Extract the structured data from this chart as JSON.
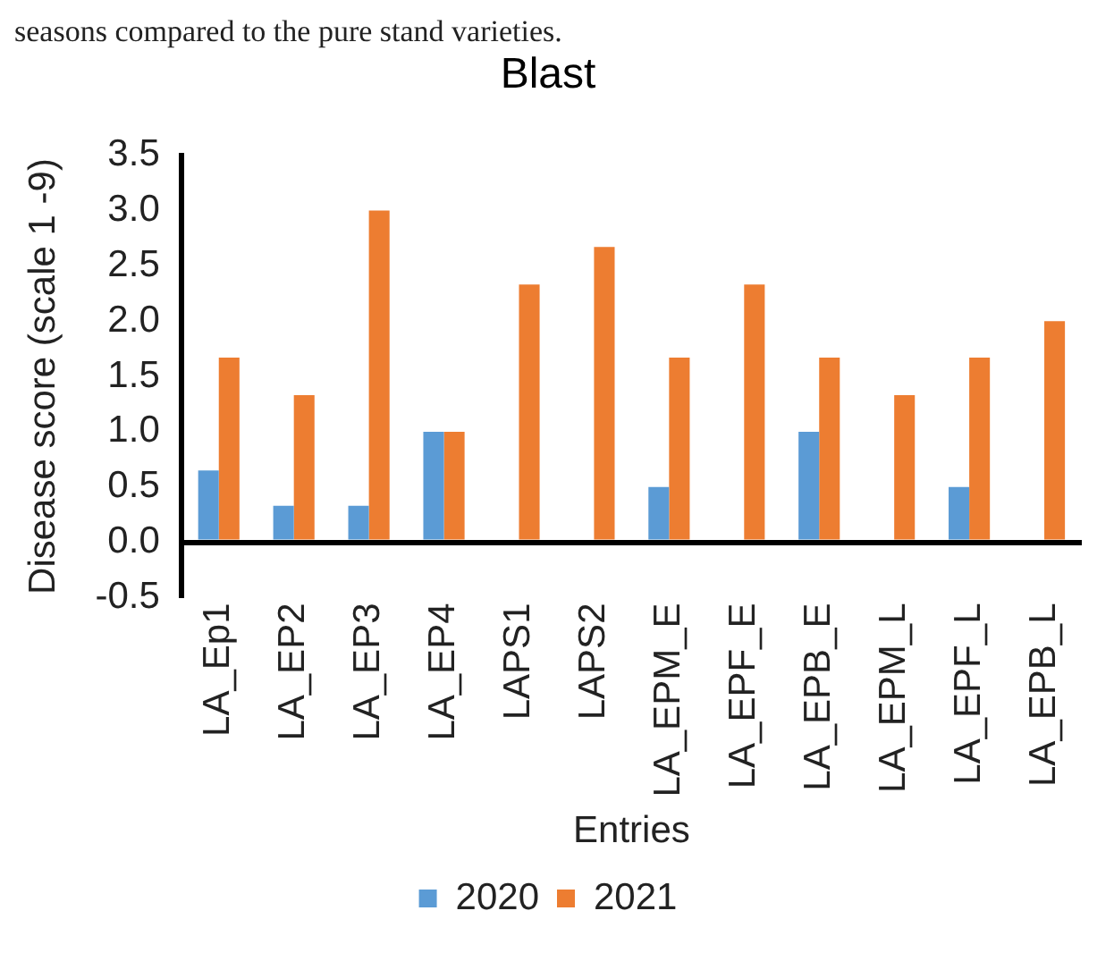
{
  "chart_data": {
    "type": "bar",
    "title": "Blast",
    "xlabel": "Entries",
    "ylabel": "Disease score (scale 1 -9)",
    "annotations": [
      "seasons compared to the pure stand varieties."
    ],
    "categories": [
      "LA_Ep1",
      "LA_EP2",
      "LA_EP3",
      "LA_EP4",
      "LAPS1",
      "LAPS2",
      "LA_EPM_E",
      "LA_EPF_E",
      "LA_EPB_E",
      "LA_EPM_L",
      "LA_EPF_L",
      "LA_EPB_L"
    ],
    "series": [
      {
        "name": "2020",
        "color": "#5b9bd5",
        "values": [
          0.65,
          0.33,
          0.33,
          1.0,
          null,
          null,
          0.5,
          null,
          1.0,
          null,
          0.5,
          null
        ]
      },
      {
        "name": "2021",
        "color": "#ed7d31",
        "values": [
          1.67,
          1.33,
          3.0,
          1.0,
          2.33,
          2.67,
          1.67,
          2.33,
          1.67,
          1.33,
          1.67,
          2.0
        ]
      }
    ],
    "ylim": [
      -0.5,
      3.5
    ],
    "yticks": [
      -0.5,
      {
        "value": 0,
        "label": "0.0"
      },
      0.5,
      {
        "value": 1,
        "label": "1.0"
      },
      1.5,
      {
        "value": 2,
        "label": "2.0"
      },
      2.5,
      {
        "value": 3,
        "label": "3.0"
      },
      3.5
    ],
    "grid": false,
    "legend": "bottom"
  }
}
